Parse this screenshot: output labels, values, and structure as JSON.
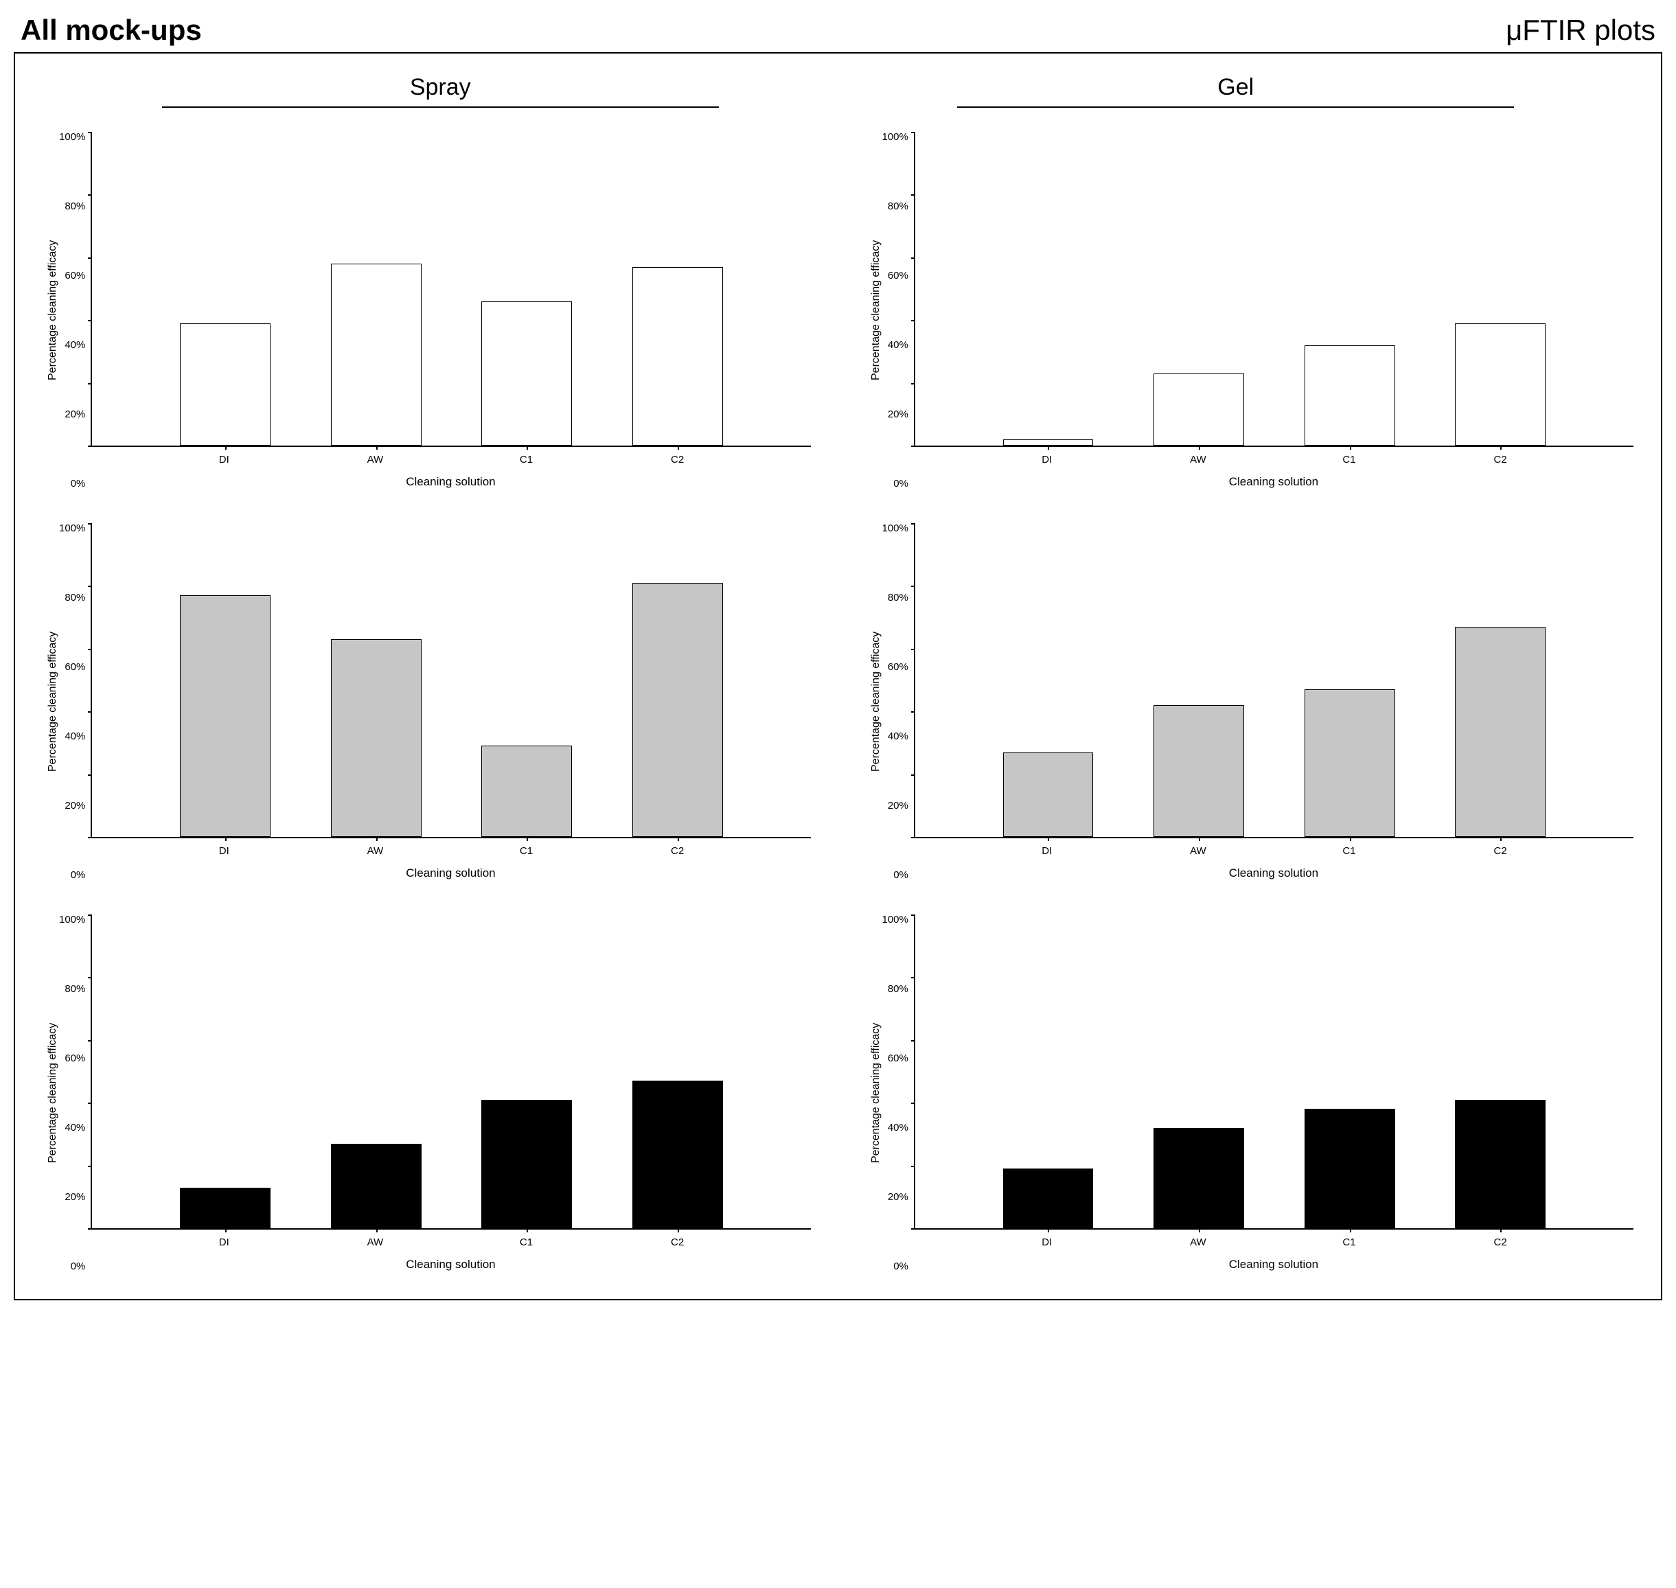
{
  "header": {
    "left": "All mock-ups",
    "right": "μFTIR plots"
  },
  "columns": [
    {
      "title": "Spray"
    },
    {
      "title": "Gel"
    }
  ],
  "shared": {
    "y_label": "Percentage cleaning efficacy",
    "x_label": "Cleaning solution",
    "categories": [
      "DI",
      "AW",
      "C1",
      "C2"
    ],
    "ylim": [
      0,
      100
    ],
    "ytick_step": 20,
    "ytick_labels": [
      "100%",
      "80%",
      "60%",
      "40%",
      "20%",
      "0%"
    ],
    "axis_color": "#000000",
    "background_color": "#ffffff",
    "label_fontsize": 16,
    "tick_fontsize": 15,
    "xlabel_fontsize": 17
  },
  "rows": [
    {
      "bar_fill": "#ffffff",
      "bar_border": "#000000"
    },
    {
      "bar_fill": "#c6c6c6",
      "bar_border": "#000000"
    },
    {
      "bar_fill": "#000000",
      "bar_border": "#000000"
    }
  ],
  "charts": [
    {
      "row": 0,
      "col": 0,
      "type": "bar",
      "values": [
        39,
        58,
        46,
        57
      ]
    },
    {
      "row": 0,
      "col": 1,
      "type": "bar",
      "values": [
        2,
        23,
        32,
        39
      ]
    },
    {
      "row": 1,
      "col": 0,
      "type": "bar",
      "values": [
        77,
        63,
        29,
        81
      ]
    },
    {
      "row": 1,
      "col": 1,
      "type": "bar",
      "values": [
        27,
        42,
        47,
        67
      ]
    },
    {
      "row": 2,
      "col": 0,
      "type": "bar",
      "values": [
        13,
        27,
        41,
        47
      ]
    },
    {
      "row": 2,
      "col": 1,
      "type": "bar",
      "values": [
        19,
        32,
        38,
        41
      ]
    }
  ]
}
